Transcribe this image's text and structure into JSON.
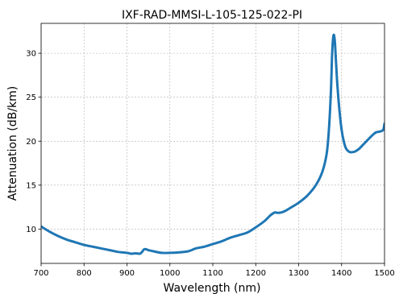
{
  "chart_data": {
    "type": "line",
    "title": "IXF-RAD-MMSI-L-105-125-022-PI",
    "xlabel": "Wavelength (nm)",
    "ylabel": "Attenuation (dB/km)",
    "xlim": [
      700,
      1500
    ],
    "ylim": [
      6.1,
      33.4
    ],
    "xticks": [
      700,
      800,
      900,
      1000,
      1100,
      1200,
      1300,
      1400,
      1500
    ],
    "yticks": [
      10,
      15,
      20,
      25,
      30
    ],
    "grid": true,
    "legend": "none",
    "series": [
      {
        "color": "#1f77b4",
        "x": [
          700,
          720,
          740,
          760,
          780,
          800,
          820,
          840,
          860,
          870,
          880,
          900,
          910,
          920,
          930,
          935,
          940,
          945,
          950,
          960,
          980,
          1000,
          1020,
          1040,
          1050,
          1060,
          1070,
          1080,
          1100,
          1120,
          1140,
          1160,
          1180,
          1200,
          1220,
          1235,
          1245,
          1250,
          1260,
          1270,
          1280,
          1300,
          1320,
          1340,
          1355,
          1365,
          1370,
          1375,
          1378,
          1381,
          1384,
          1387,
          1390,
          1395,
          1400,
          1405,
          1410,
          1415,
          1420,
          1430,
          1440,
          1450,
          1460,
          1470,
          1480,
          1490,
          1497,
          1500
        ],
        "y": [
          10.3,
          9.7,
          9.2,
          8.8,
          8.5,
          8.2,
          8.0,
          7.8,
          7.6,
          7.5,
          7.4,
          7.3,
          7.2,
          7.25,
          7.2,
          7.4,
          7.7,
          7.7,
          7.6,
          7.5,
          7.3,
          7.3,
          7.35,
          7.45,
          7.6,
          7.8,
          7.9,
          8.0,
          8.3,
          8.6,
          9.0,
          9.3,
          9.6,
          10.2,
          10.9,
          11.6,
          11.9,
          11.85,
          11.9,
          12.1,
          12.4,
          13.0,
          13.8,
          15.0,
          16.5,
          18.5,
          21.0,
          25.5,
          30.0,
          32.0,
          31.5,
          29.0,
          26.5,
          23.5,
          21.3,
          20.0,
          19.2,
          18.9,
          18.75,
          18.8,
          19.1,
          19.6,
          20.1,
          20.6,
          21.0,
          21.1,
          21.3,
          22.0
        ]
      }
    ]
  }
}
